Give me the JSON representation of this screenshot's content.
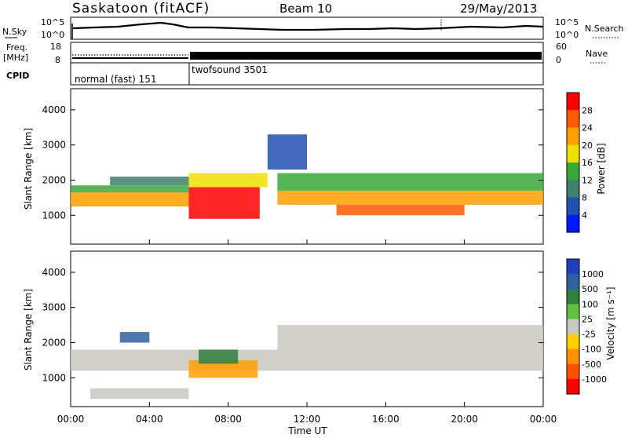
{
  "header": {
    "station": "Saskatoon (fitACF)",
    "beam": "Beam 10",
    "date": "29/May/2013"
  },
  "noise_panel": {
    "left_label": "N.Sky",
    "right_label": "N.Search",
    "left_ticks": [
      "10^5",
      "10^0"
    ],
    "right_ticks": [
      "10^5",
      "10^0"
    ]
  },
  "freq_panel": {
    "left_label_1": "Freq.",
    "left_label_2": "[MHz]",
    "right_label": "Nave",
    "left_ticks": [
      "18",
      "8"
    ],
    "right_ticks": [
      "60",
      "0"
    ]
  },
  "cpid_panel": {
    "label": "CPID",
    "modes": [
      {
        "name": "normal (fast) 151",
        "start_hour": 0,
        "end_hour": 6
      },
      {
        "name": "twofsound 3501",
        "start_hour": 6,
        "end_hour": 24
      }
    ]
  },
  "x_axis": {
    "label": "Time UT",
    "ticks": [
      "00:00",
      "04:00",
      "08:00",
      "12:00",
      "16:00",
      "20:00",
      "00:00"
    ]
  },
  "chart_data": [
    {
      "type": "heatmap",
      "name": "power",
      "ylabel": "Slant Range [km]",
      "ylim": [
        180,
        4600
      ],
      "xlim": [
        0,
        24
      ],
      "y_ticks": [
        1000,
        2000,
        3000,
        4000
      ],
      "colorbar_label": "Power [dB]",
      "colorbar_ticks": [
        "28",
        "24",
        "20",
        "16",
        "12",
        "8",
        "4"
      ],
      "colorbar_colors": [
        "#ff0000",
        "#ff5a00",
        "#ffa000",
        "#f0e000",
        "#38a838",
        "#408070",
        "#2050b0",
        "#0018ff"
      ],
      "bands": [
        {
          "t0": 0.0,
          "t1": 6.0,
          "r0": 1250,
          "r1": 1650,
          "color": "#ffa000"
        },
        {
          "t0": 0.0,
          "t1": 6.0,
          "r0": 1650,
          "r1": 1850,
          "color": "#38a838"
        },
        {
          "t0": 2.0,
          "t1": 6.0,
          "r0": 1850,
          "r1": 2100,
          "color": "#408070"
        },
        {
          "t0": 6.0,
          "t1": 9.6,
          "r0": 900,
          "r1": 1800,
          "color": "#ff0000"
        },
        {
          "t0": 6.0,
          "t1": 10.0,
          "r0": 1800,
          "r1": 2200,
          "color": "#f0e000"
        },
        {
          "t0": 10.5,
          "t1": 24.0,
          "r0": 1300,
          "r1": 1700,
          "color": "#ffa000"
        },
        {
          "t0": 13.5,
          "t1": 20.0,
          "r0": 1000,
          "r1": 1300,
          "color": "#ff5a00"
        },
        {
          "t0": 10.5,
          "t1": 24.0,
          "r0": 1700,
          "r1": 2200,
          "color": "#38a838"
        },
        {
          "t0": 10.0,
          "t1": 12.0,
          "r0": 2300,
          "r1": 3300,
          "color": "#2050b0"
        }
      ]
    },
    {
      "type": "heatmap",
      "name": "velocity",
      "ylabel": "Slant Range [km]",
      "ylim": [
        180,
        4600
      ],
      "xlim": [
        0,
        24
      ],
      "y_ticks": [
        1000,
        2000,
        3000,
        4000
      ],
      "colorbar_label": "Velocity [m s⁻¹]",
      "colorbar_ticks": [
        "1000",
        "500",
        "100",
        "25",
        "-25",
        "-100",
        "-500",
        "-1000"
      ],
      "colorbar_colors": [
        "#2040c0",
        "#3060a0",
        "#308040",
        "#60c040",
        "#c8c8c0",
        "#ffd000",
        "#ff9000",
        "#ff5000",
        "#ff0000"
      ],
      "bands": [
        {
          "t0": 0.0,
          "t1": 24.0,
          "r0": 1200,
          "r1": 1800,
          "color": "#c8c8c0"
        },
        {
          "t0": 10.5,
          "t1": 24.0,
          "r0": 1800,
          "r1": 2500,
          "color": "#c8c8c0"
        },
        {
          "t0": 6.0,
          "t1": 9.5,
          "r0": 1000,
          "r1": 1500,
          "color": "#ffa000"
        },
        {
          "t0": 6.5,
          "t1": 8.5,
          "r0": 1400,
          "r1": 1800,
          "color": "#308040"
        },
        {
          "t0": 2.5,
          "t1": 4.0,
          "r0": 2000,
          "r1": 2300,
          "color": "#3060a0"
        },
        {
          "t0": 1.0,
          "t1": 6.0,
          "r0": 400,
          "r1": 700,
          "color": "#c8c8c0"
        }
      ]
    }
  ]
}
